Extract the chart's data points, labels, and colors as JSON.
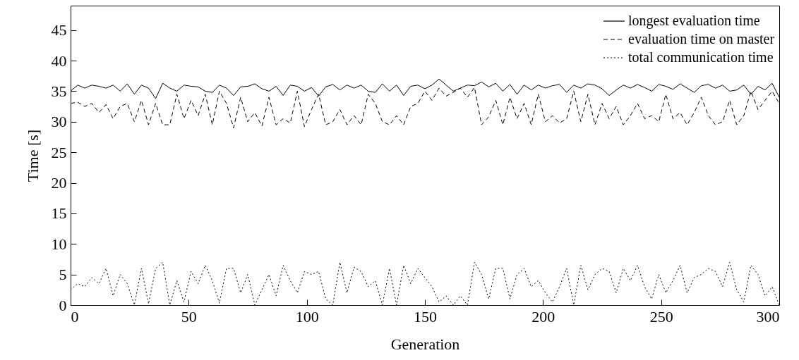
{
  "chart_data": {
    "type": "line",
    "xlabel": "Generation",
    "ylabel": "Time [s]",
    "x": [
      0,
      3,
      6,
      9,
      12,
      15,
      18,
      21,
      24,
      27,
      30,
      33,
      36,
      39,
      42,
      45,
      48,
      51,
      54,
      57,
      60,
      63,
      66,
      69,
      72,
      75,
      78,
      81,
      84,
      87,
      90,
      93,
      96,
      99,
      102,
      105,
      108,
      111,
      114,
      117,
      120,
      123,
      126,
      129,
      132,
      135,
      138,
      141,
      144,
      147,
      150,
      153,
      156,
      159,
      162,
      165,
      168,
      171,
      174,
      177,
      180,
      183,
      186,
      189,
      192,
      195,
      198,
      201,
      204,
      207,
      210,
      213,
      216,
      219,
      222,
      225,
      228,
      231,
      234,
      237,
      240,
      243,
      246,
      249,
      252,
      255,
      258,
      261,
      264,
      267,
      270,
      273,
      276,
      279,
      282,
      285,
      288,
      291,
      294,
      297,
      300
    ],
    "series": [
      {
        "name": "longest evaluation time",
        "color": "#000000",
        "line_style": "solid",
        "values": [
          35,
          36,
          35.5,
          36,
          35.8,
          35.5,
          36,
          35,
          36.2,
          34.5,
          36,
          35.5,
          33.8,
          36.3,
          35.5,
          35,
          36,
          35.8,
          35.7,
          35,
          34.8,
          36,
          35.5,
          34.3,
          35.7,
          35.8,
          36.2,
          35.4,
          35,
          35.8,
          34.3,
          36,
          35.8,
          35,
          35.6,
          34.2,
          35.7,
          36.1,
          35.2,
          36,
          35.5,
          36,
          35,
          34.8,
          36.2,
          35,
          36,
          34.3,
          35.8,
          36,
          35.4,
          36,
          37,
          36,
          35,
          35.5,
          36,
          35.9,
          36.5,
          35.7,
          36.3,
          35,
          36.1,
          34.5,
          36,
          35.2,
          36,
          35.5,
          35.9,
          36.1,
          34.8,
          36,
          35.5,
          36.2,
          36,
          35.4,
          34.3,
          35.2,
          36,
          35.5,
          36.1,
          35.6,
          35,
          36.1,
          35.8,
          35.3,
          36.2,
          35.5,
          34.8,
          35.9,
          36.1,
          35.5,
          36,
          35,
          35.2,
          36,
          34.5,
          35.8,
          35.2,
          36.3,
          34
        ]
      },
      {
        "name": "evaluation time on master",
        "color": "#000000",
        "line_style": "dashed",
        "values": [
          33,
          33.2,
          32.5,
          33,
          31.5,
          32.8,
          30.5,
          32.5,
          33,
          30,
          33.5,
          29.5,
          33,
          29.5,
          29.5,
          34.5,
          30.5,
          33.5,
          31,
          34.5,
          29.5,
          35,
          33,
          29,
          34,
          30,
          31.5,
          29.3,
          34,
          29.5,
          30.5,
          29.8,
          35,
          29.2,
          32,
          34.5,
          29.5,
          30,
          32,
          29.5,
          31,
          29.5,
          34.5,
          33,
          30,
          29.5,
          31,
          29.5,
          32.5,
          33,
          35,
          33.5,
          35.5,
          34.2,
          34.8,
          35.5,
          34,
          35.6,
          29.5,
          30.8,
          33.5,
          29.5,
          34,
          30.5,
          33,
          29.5,
          34.5,
          30,
          31,
          29.8,
          30.5,
          35,
          30,
          34.5,
          29.5,
          33,
          30.5,
          32.5,
          29.5,
          31,
          33,
          30.5,
          31,
          30,
          34.5,
          30.5,
          31.5,
          29.5,
          31.5,
          34,
          31,
          29.5,
          30,
          33.5,
          29.5,
          31,
          35,
          32,
          33.5,
          35,
          33
        ]
      },
      {
        "name": "total communication time",
        "color": "#000000",
        "line_style": "dotted",
        "values": [
          2.5,
          3.5,
          3,
          4.5,
          3.5,
          6,
          1.5,
          5,
          3.5,
          0,
          6,
          0.2,
          6,
          7,
          0,
          4,
          0.5,
          5.5,
          3.5,
          6.5,
          4,
          0.3,
          6,
          6,
          2,
          5,
          0,
          2.5,
          5,
          1.5,
          6.5,
          4,
          2,
          5.5,
          5,
          5.5,
          1,
          0,
          7,
          2,
          6.2,
          5.5,
          3,
          4,
          0,
          6,
          0,
          6.5,
          3.5,
          6,
          4.5,
          3,
          0.5,
          1.5,
          0,
          1.5,
          0,
          7,
          5,
          1,
          6,
          6,
          1,
          5,
          6,
          3,
          4,
          2,
          0.5,
          3,
          6,
          0,
          6.5,
          2.5,
          5,
          6,
          5.5,
          2,
          6,
          4,
          6.5,
          3,
          1,
          5,
          2,
          4,
          6.5,
          2,
          4.5,
          5,
          6,
          5.5,
          3,
          7,
          2.5,
          0.5,
          6.5,
          5,
          1.5,
          3,
          0
        ]
      }
    ],
    "xlim": [
      0,
      300
    ],
    "xticks": [
      0,
      50,
      100,
      150,
      200,
      250,
      300
    ],
    "ylim": [
      0,
      49
    ],
    "yticks": [
      0,
      5,
      10,
      15,
      20,
      25,
      30,
      35,
      40,
      45
    ],
    "grid": false,
    "legend": "top right"
  }
}
